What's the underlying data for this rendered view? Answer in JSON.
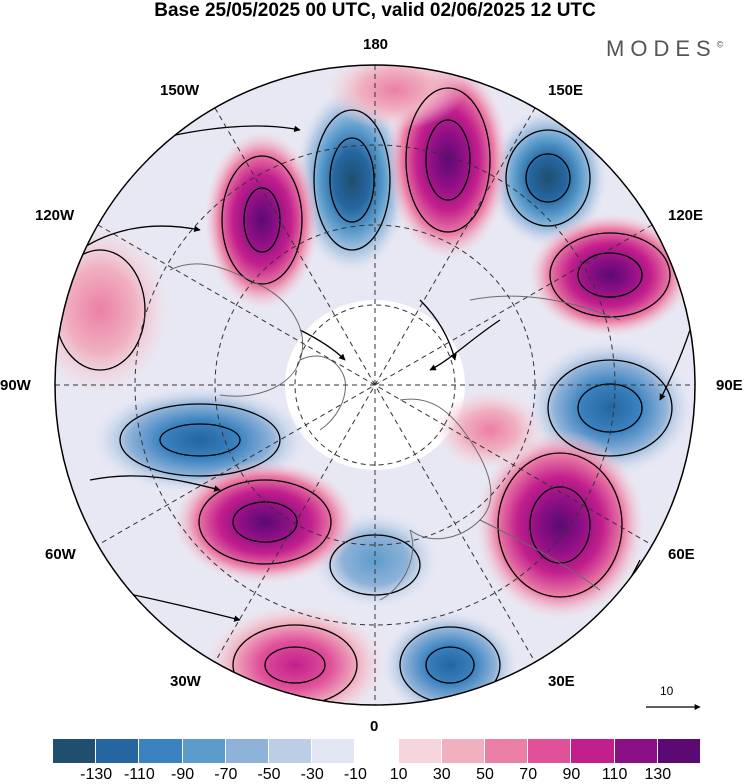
{
  "title": "Base 25/05/2025 00 UTC, valid 02/06/2025 12 UTC",
  "brand": "MODES",
  "brand_mark": "©",
  "longitude_labels": [
    "180",
    "150E",
    "120E",
    "90E",
    "60E",
    "30E",
    "0",
    "30W",
    "60W",
    "90W",
    "120W",
    "150W"
  ],
  "reference_vector": "10",
  "colorbar": {
    "colors": [
      "#1f4e6e",
      "#2566a0",
      "#3a82c0",
      "#5b9ccc",
      "#8fb2d8",
      "#bccde6",
      "#e2e6f2",
      "#ffffff",
      "#f6d6dc",
      "#f0b0c0",
      "#eb7fa6",
      "#e0519a",
      "#c21f8c",
      "#8b0f84",
      "#5b0a73"
    ],
    "tick_labels": [
      "-130",
      "-110",
      "-90",
      "-70",
      "-50",
      "-30",
      "-10",
      "10",
      "30",
      "50",
      "70",
      "90",
      "110",
      "130"
    ]
  },
  "anomaly_centers": [
    {
      "sign": "negative",
      "value": -130,
      "lon_region": "180-150W"
    },
    {
      "sign": "positive",
      "value": 110,
      "lon_region": "180-150E"
    },
    {
      "sign": "negative",
      "value": -130,
      "lon_region": "150E"
    },
    {
      "sign": "positive",
      "value": 120,
      "lon_region": "120E"
    },
    {
      "sign": "negative",
      "value": -110,
      "lon_region": "90E"
    },
    {
      "sign": "positive",
      "value": 110,
      "lon_region": "60E"
    },
    {
      "sign": "negative",
      "value": -90,
      "lon_region": "30E"
    },
    {
      "sign": "positive",
      "value": 90,
      "lon_region": "30W"
    },
    {
      "sign": "negative",
      "value": -50,
      "lon_region": "0"
    },
    {
      "sign": "positive",
      "value": 120,
      "lon_region": "60W"
    },
    {
      "sign": "negative",
      "value": -110,
      "lon_region": "90W"
    },
    {
      "sign": "positive",
      "value": 50,
      "lon_region": "120W"
    },
    {
      "sign": "positive",
      "value": 120,
      "lon_region": "150W"
    }
  ]
}
